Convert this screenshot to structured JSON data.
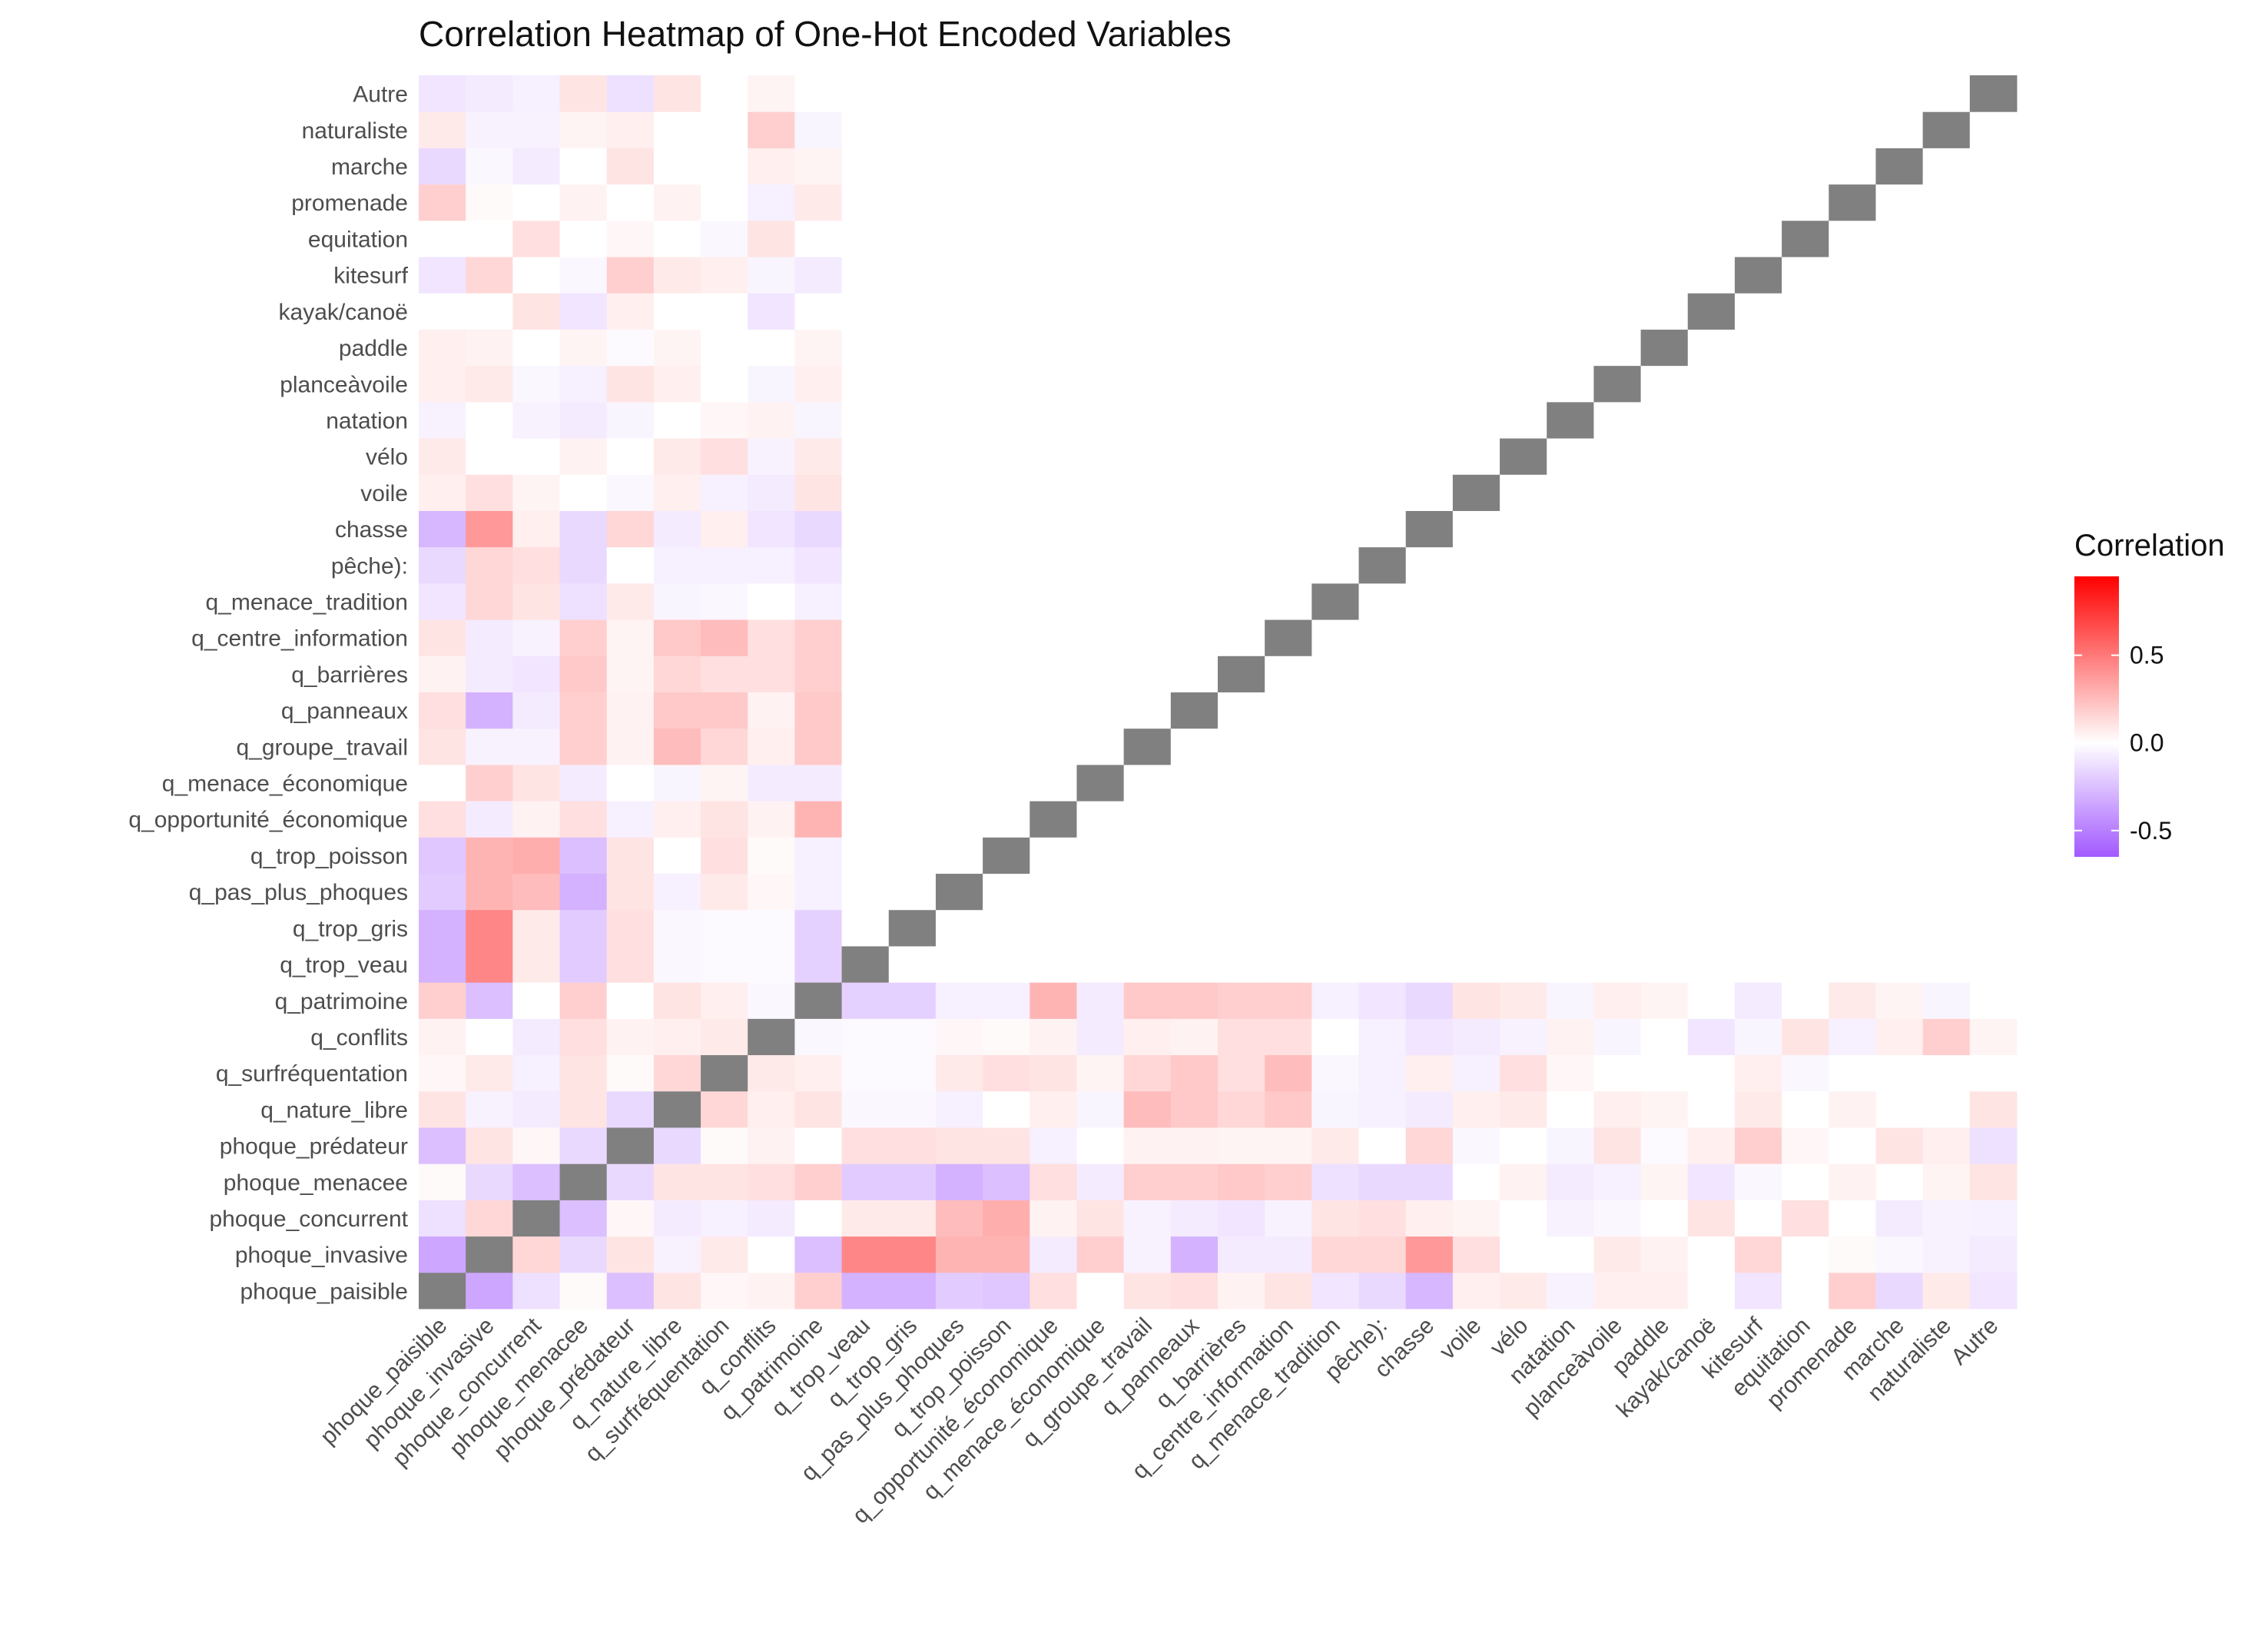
{
  "chart_data": {
    "type": "heatmap",
    "title": "Correlation Heatmap of One-Hot Encoded Variables",
    "variables": [
      "phoque_paisible",
      "phoque_invasive",
      "phoque_concurrent",
      "phoque_menacee",
      "phoque_prédateur",
      "q_nature_libre",
      "q_surfréquentation",
      "q_conflits",
      "q_patrimoine",
      "q_trop_veau",
      "q_trop_gris",
      "q_pas_plus_phoques",
      "q_trop_poisson",
      "q_opportunité_économique",
      "q_menace_économique",
      "q_groupe_travail",
      "q_panneaux",
      "q_barrières",
      "q_centre_information",
      "q_menace_tradition",
      "pêche):",
      "chasse",
      "voile",
      "vélo",
      "natation",
      "planceàvoile",
      "paddle",
      "kayak/canoë",
      "kitesurf",
      "equitation",
      "promenade",
      "marche",
      "naturaliste",
      "Autre"
    ],
    "x_order": "left-to-right",
    "y_order": "bottom-to-top",
    "legend": {
      "title": "Correlation",
      "ticks": [
        0.5,
        0.0,
        -0.5
      ],
      "tick_labels": [
        "0.5",
        "0.0",
        "-0.5"
      ],
      "range": [
        -0.65,
        0.95
      ],
      "colors": {
        "low": "#a259ff",
        "mid": "#ffffff",
        "high": "#ff0000"
      },
      "placement": "right"
    },
    "diagonal_color": "#808080",
    "grid": false,
    "sparse_note_keys": "matrix entries keyed by variable index pairs; unspecified pairs are 0",
    "pairs": [
      [
        0,
        1,
        -0.35
      ],
      [
        0,
        2,
        -0.12
      ],
      [
        0,
        3,
        0.02
      ],
      [
        0,
        4,
        -0.25
      ],
      [
        0,
        5,
        0.1
      ],
      [
        0,
        6,
        0.03
      ],
      [
        0,
        7,
        0.05
      ],
      [
        0,
        8,
        0.18
      ],
      [
        0,
        9,
        -0.3
      ],
      [
        0,
        10,
        -0.3
      ],
      [
        0,
        11,
        -0.2
      ],
      [
        0,
        12,
        -0.22
      ],
      [
        0,
        13,
        0.12
      ],
      [
        0,
        15,
        0.1
      ],
      [
        0,
        16,
        0.12
      ],
      [
        0,
        17,
        0.05
      ],
      [
        0,
        18,
        0.1
      ],
      [
        0,
        19,
        -0.1
      ],
      [
        0,
        20,
        -0.15
      ],
      [
        0,
        21,
        -0.28
      ],
      [
        0,
        22,
        0.06
      ],
      [
        0,
        23,
        0.08
      ],
      [
        0,
        24,
        -0.05
      ],
      [
        0,
        25,
        0.06
      ],
      [
        0,
        26,
        0.06
      ],
      [
        0,
        28,
        -0.1
      ],
      [
        0,
        30,
        0.18
      ],
      [
        0,
        31,
        -0.15
      ],
      [
        0,
        32,
        0.08
      ],
      [
        0,
        33,
        -0.1
      ],
      [
        1,
        2,
        0.15
      ],
      [
        1,
        3,
        -0.15
      ],
      [
        1,
        4,
        0.1
      ],
      [
        1,
        5,
        -0.05
      ],
      [
        1,
        6,
        0.08
      ],
      [
        1,
        8,
        -0.25
      ],
      [
        1,
        9,
        0.45
      ],
      [
        1,
        10,
        0.45
      ],
      [
        1,
        11,
        0.28
      ],
      [
        1,
        12,
        0.28
      ],
      [
        1,
        13,
        -0.08
      ],
      [
        1,
        14,
        0.18
      ],
      [
        1,
        15,
        -0.05
      ],
      [
        1,
        16,
        -0.3
      ],
      [
        1,
        17,
        -0.08
      ],
      [
        1,
        18,
        -0.08
      ],
      [
        1,
        19,
        0.15
      ],
      [
        1,
        20,
        0.15
      ],
      [
        1,
        21,
        0.38
      ],
      [
        1,
        22,
        0.12
      ],
      [
        1,
        25,
        0.08
      ],
      [
        1,
        26,
        0.05
      ],
      [
        1,
        28,
        0.15
      ],
      [
        1,
        30,
        0.02
      ],
      [
        1,
        31,
        -0.03
      ],
      [
        1,
        32,
        -0.05
      ],
      [
        1,
        33,
        -0.08
      ],
      [
        2,
        3,
        -0.25
      ],
      [
        2,
        4,
        0.03
      ],
      [
        2,
        5,
        -0.08
      ],
      [
        2,
        6,
        -0.06
      ],
      [
        2,
        7,
        -0.08
      ],
      [
        2,
        9,
        0.08
      ],
      [
        2,
        10,
        0.08
      ],
      [
        2,
        11,
        0.25
      ],
      [
        2,
        12,
        0.3
      ],
      [
        2,
        13,
        0.05
      ],
      [
        2,
        14,
        0.1
      ],
      [
        2,
        15,
        -0.05
      ],
      [
        2,
        16,
        -0.08
      ],
      [
        2,
        17,
        -0.1
      ],
      [
        2,
        18,
        -0.05
      ],
      [
        2,
        19,
        0.1
      ],
      [
        2,
        20,
        0.12
      ],
      [
        2,
        21,
        0.06
      ],
      [
        2,
        22,
        0.04
      ],
      [
        2,
        24,
        -0.05
      ],
      [
        2,
        25,
        -0.03
      ],
      [
        2,
        27,
        0.1
      ],
      [
        2,
        29,
        0.12
      ],
      [
        2,
        31,
        -0.08
      ],
      [
        2,
        32,
        -0.05
      ],
      [
        2,
        33,
        -0.06
      ],
      [
        3,
        4,
        -0.15
      ],
      [
        3,
        5,
        0.1
      ],
      [
        3,
        6,
        0.1
      ],
      [
        3,
        7,
        0.12
      ],
      [
        3,
        8,
        0.18
      ],
      [
        3,
        9,
        -0.2
      ],
      [
        3,
        10,
        -0.2
      ],
      [
        3,
        11,
        -0.3
      ],
      [
        3,
        12,
        -0.25
      ],
      [
        3,
        13,
        0.12
      ],
      [
        3,
        14,
        -0.08
      ],
      [
        3,
        15,
        0.18
      ],
      [
        3,
        16,
        0.18
      ],
      [
        3,
        17,
        0.2
      ],
      [
        3,
        18,
        0.18
      ],
      [
        3,
        19,
        -0.12
      ],
      [
        3,
        20,
        -0.15
      ],
      [
        3,
        21,
        -0.15
      ],
      [
        3,
        23,
        0.05
      ],
      [
        3,
        24,
        -0.08
      ],
      [
        3,
        25,
        -0.06
      ],
      [
        3,
        26,
        0.04
      ],
      [
        3,
        27,
        -0.1
      ],
      [
        3,
        28,
        -0.03
      ],
      [
        3,
        30,
        0.05
      ],
      [
        3,
        32,
        0.04
      ],
      [
        3,
        33,
        0.1
      ],
      [
        4,
        5,
        -0.15
      ],
      [
        4,
        6,
        0.02
      ],
      [
        4,
        7,
        0.05
      ],
      [
        4,
        9,
        0.12
      ],
      [
        4,
        10,
        0.12
      ],
      [
        4,
        11,
        0.1
      ],
      [
        4,
        12,
        0.1
      ],
      [
        4,
        13,
        -0.06
      ],
      [
        4,
        15,
        0.05
      ],
      [
        4,
        16,
        0.05
      ],
      [
        4,
        17,
        0.04
      ],
      [
        4,
        18,
        0.04
      ],
      [
        4,
        19,
        0.08
      ],
      [
        4,
        21,
        0.15
      ],
      [
        4,
        22,
        -0.03
      ],
      [
        4,
        24,
        -0.04
      ],
      [
        4,
        25,
        0.1
      ],
      [
        4,
        26,
        -0.02
      ],
      [
        4,
        27,
        0.06
      ],
      [
        4,
        28,
        0.18
      ],
      [
        4,
        29,
        0.03
      ],
      [
        4,
        31,
        0.1
      ],
      [
        4,
        32,
        0.06
      ],
      [
        4,
        33,
        -0.12
      ],
      [
        5,
        6,
        0.15
      ],
      [
        5,
        7,
        0.06
      ],
      [
        5,
        8,
        0.1
      ],
      [
        5,
        9,
        -0.03
      ],
      [
        5,
        10,
        -0.03
      ],
      [
        5,
        11,
        -0.06
      ],
      [
        5,
        13,
        0.06
      ],
      [
        5,
        14,
        -0.04
      ],
      [
        5,
        15,
        0.25
      ],
      [
        5,
        16,
        0.2
      ],
      [
        5,
        17,
        0.15
      ],
      [
        5,
        18,
        0.2
      ],
      [
        5,
        19,
        -0.04
      ],
      [
        5,
        20,
        -0.06
      ],
      [
        5,
        21,
        -0.08
      ],
      [
        5,
        22,
        0.06
      ],
      [
        5,
        23,
        0.08
      ],
      [
        5,
        25,
        0.06
      ],
      [
        5,
        26,
        0.04
      ],
      [
        5,
        28,
        0.08
      ],
      [
        5,
        30,
        0.05
      ],
      [
        5,
        33,
        0.1
      ],
      [
        6,
        7,
        0.08
      ],
      [
        6,
        8,
        0.06
      ],
      [
        6,
        9,
        -0.02
      ],
      [
        6,
        10,
        -0.02
      ],
      [
        6,
        11,
        0.08
      ],
      [
        6,
        12,
        0.12
      ],
      [
        6,
        13,
        0.1
      ],
      [
        6,
        14,
        0.04
      ],
      [
        6,
        15,
        0.15
      ],
      [
        6,
        16,
        0.2
      ],
      [
        6,
        17,
        0.12
      ],
      [
        6,
        18,
        0.25
      ],
      [
        6,
        19,
        -0.03
      ],
      [
        6,
        20,
        -0.06
      ],
      [
        6,
        21,
        0.06
      ],
      [
        6,
        22,
        -0.06
      ],
      [
        6,
        23,
        0.12
      ],
      [
        6,
        24,
        0.03
      ],
      [
        6,
        28,
        0.06
      ],
      [
        6,
        29,
        -0.03
      ],
      [
        7,
        8,
        -0.03
      ],
      [
        7,
        9,
        -0.02
      ],
      [
        7,
        10,
        -0.02
      ],
      [
        7,
        11,
        0.03
      ],
      [
        7,
        12,
        0.02
      ],
      [
        7,
        13,
        0.05
      ],
      [
        7,
        14,
        -0.08
      ],
      [
        7,
        15,
        0.06
      ],
      [
        7,
        16,
        0.05
      ],
      [
        7,
        17,
        0.12
      ],
      [
        7,
        18,
        0.12
      ],
      [
        7,
        20,
        -0.06
      ],
      [
        7,
        21,
        -0.1
      ],
      [
        7,
        22,
        -0.08
      ],
      [
        7,
        23,
        -0.05
      ],
      [
        7,
        24,
        0.05
      ],
      [
        7,
        25,
        -0.04
      ],
      [
        7,
        27,
        -0.1
      ],
      [
        7,
        28,
        -0.04
      ],
      [
        7,
        29,
        0.1
      ],
      [
        7,
        30,
        -0.06
      ],
      [
        7,
        31,
        0.06
      ],
      [
        7,
        32,
        0.18
      ],
      [
        7,
        33,
        0.04
      ],
      [
        8,
        9,
        -0.18
      ],
      [
        8,
        10,
        -0.18
      ],
      [
        8,
        11,
        -0.06
      ],
      [
        8,
        12,
        -0.06
      ],
      [
        8,
        13,
        0.28
      ],
      [
        8,
        14,
        -0.08
      ],
      [
        8,
        15,
        0.2
      ],
      [
        8,
        16,
        0.2
      ],
      [
        8,
        17,
        0.18
      ],
      [
        8,
        18,
        0.18
      ],
      [
        8,
        19,
        -0.06
      ],
      [
        8,
        20,
        -0.1
      ],
      [
        8,
        21,
        -0.15
      ],
      [
        8,
        22,
        0.1
      ],
      [
        8,
        23,
        0.08
      ],
      [
        8,
        24,
        -0.04
      ],
      [
        8,
        25,
        0.06
      ],
      [
        8,
        26,
        0.04
      ],
      [
        8,
        28,
        -0.08
      ],
      [
        8,
        30,
        0.08
      ],
      [
        8,
        31,
        0.04
      ],
      [
        8,
        32,
        -0.04
      ]
    ]
  }
}
